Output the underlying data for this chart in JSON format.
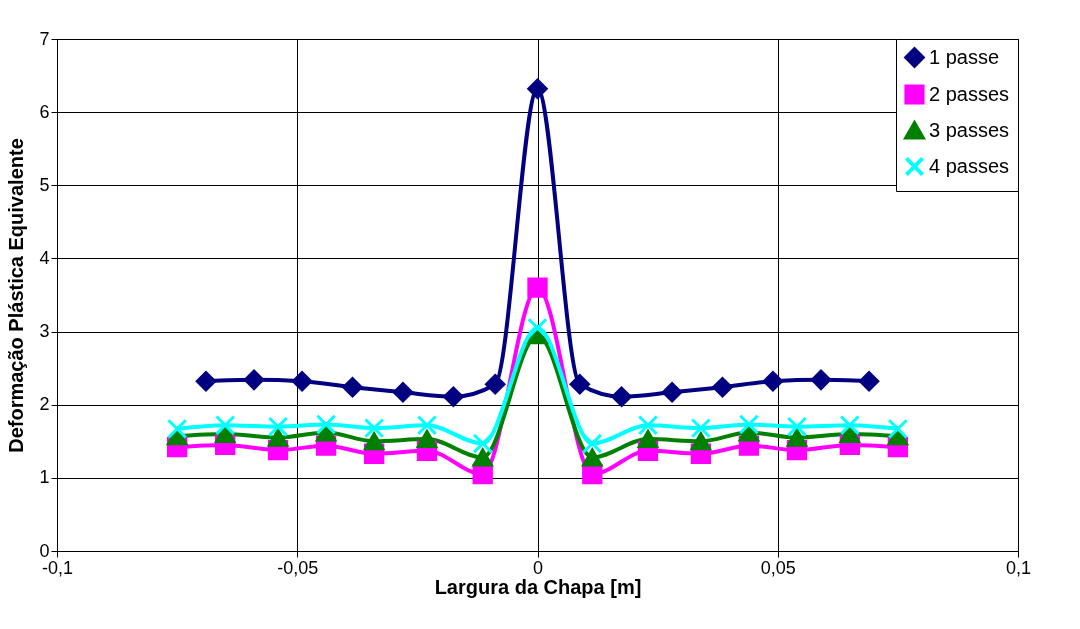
{
  "chart_data": {
    "type": "line",
    "xlabel": "Largura da Chapa [m]",
    "ylabel": "Deformação Plástica Equivalente",
    "xlim": [
      -0.1,
      0.1
    ],
    "xticks": [
      {
        "value": -0.1,
        "label": "-0,1"
      },
      {
        "value": -0.05,
        "label": "-0,05"
      },
      {
        "value": 0,
        "label": "0"
      },
      {
        "value": 0.05,
        "label": "0,05"
      },
      {
        "value": 0.1,
        "label": "0,1"
      }
    ],
    "ylim": [
      0,
      7
    ],
    "yticks": [
      0,
      1,
      2,
      3,
      4,
      5,
      6,
      7
    ],
    "grid": true,
    "legend": "top right",
    "line_style": "solid",
    "series": [
      {
        "name": "1 passe",
        "color": "#000080",
        "marker": "diamond",
        "x": [
          -0.069,
          -0.059,
          -0.049,
          -0.0385,
          -0.028,
          -0.0175,
          -0.0088,
          0,
          0.0088,
          0.0175,
          0.028,
          0.0385,
          0.049,
          0.059,
          0.069
        ],
        "values": [
          2.32,
          2.34,
          2.32,
          2.24,
          2.17,
          2.11,
          2.28,
          6.32,
          2.28,
          2.11,
          2.17,
          2.24,
          2.32,
          2.34,
          2.32
        ]
      },
      {
        "name": "2 passes",
        "color": "#ff00ff",
        "marker": "square",
        "x": [
          -0.075,
          -0.065,
          -0.054,
          -0.044,
          -0.034,
          -0.023,
          -0.0114,
          0,
          0.0114,
          0.023,
          0.034,
          0.044,
          0.054,
          0.065,
          0.075
        ],
        "values": [
          1.42,
          1.45,
          1.38,
          1.44,
          1.33,
          1.37,
          1.05,
          3.6,
          1.05,
          1.37,
          1.33,
          1.44,
          1.38,
          1.45,
          1.42
        ]
      },
      {
        "name": "3 passes",
        "color": "#008000",
        "marker": "triangle",
        "x": [
          -0.075,
          -0.065,
          -0.054,
          -0.044,
          -0.034,
          -0.023,
          -0.0114,
          0,
          0.0114,
          0.023,
          0.034,
          0.044,
          0.054,
          0.065,
          0.075
        ],
        "values": [
          1.57,
          1.6,
          1.55,
          1.62,
          1.5,
          1.53,
          1.28,
          2.95,
          1.28,
          1.53,
          1.5,
          1.62,
          1.55,
          1.6,
          1.57
        ]
      },
      {
        "name": "4 passes",
        "color": "#00ffff",
        "marker": "cross",
        "x": [
          -0.075,
          -0.065,
          -0.054,
          -0.044,
          -0.034,
          -0.023,
          -0.0114,
          0,
          0.0114,
          0.023,
          0.034,
          0.044,
          0.054,
          0.065,
          0.075
        ],
        "values": [
          1.67,
          1.72,
          1.7,
          1.73,
          1.68,
          1.72,
          1.47,
          3.05,
          1.47,
          1.72,
          1.68,
          1.73,
          1.7,
          1.72,
          1.67
        ]
      }
    ]
  }
}
